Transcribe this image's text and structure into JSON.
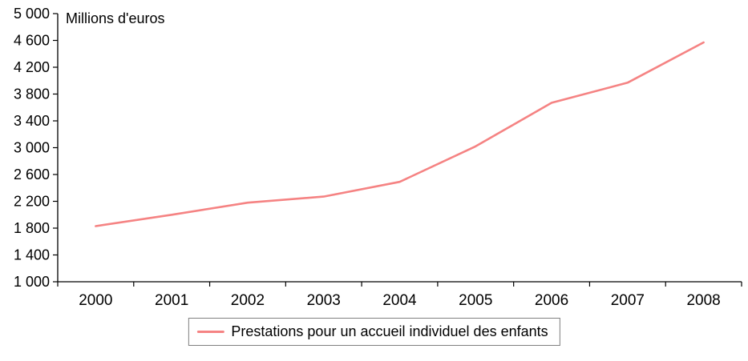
{
  "chart_data": {
    "type": "line",
    "title": "",
    "unit_note": "Millions d'euros",
    "categories": [
      "2000",
      "2001",
      "2002",
      "2003",
      "2004",
      "2005",
      "2006",
      "2007",
      "2008"
    ],
    "series": [
      {
        "name": "Prestations pour un accueil individuel des enfants",
        "values": [
          1830,
          2000,
          2180,
          2270,
          2490,
          3020,
          3670,
          3970,
          4570
        ],
        "color": "#f58383"
      }
    ],
    "xlabel": "",
    "ylabel": "Millions d'euros",
    "ylim": [
      1000,
      5000
    ],
    "ytick_step": 400,
    "grid": false,
    "legend_position": "bottom-center",
    "axis_color": "#000000",
    "legend_border_color": "#7f7f7f"
  }
}
